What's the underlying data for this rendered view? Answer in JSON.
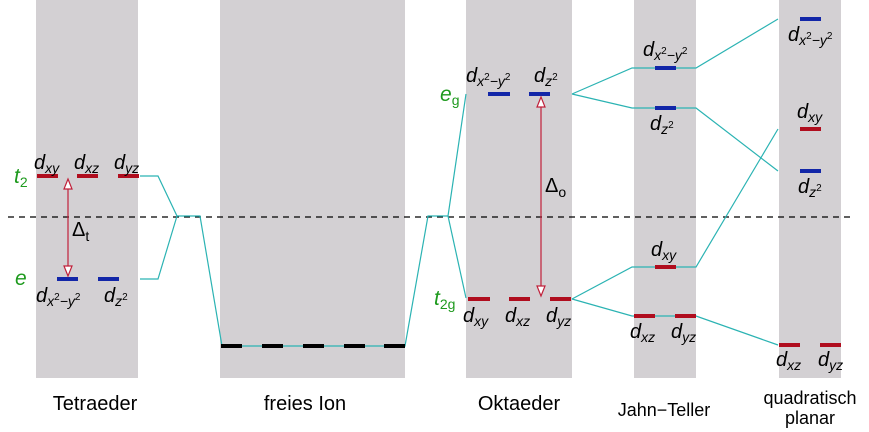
{
  "captions": {
    "tetrahedral": "Tetraeder",
    "free_ion": "freies Ion",
    "octahedral": "Oktaeder",
    "jahn_teller": "Jahn−Teller",
    "square_planar_1": "quadratisch",
    "square_planar_2": "planar"
  },
  "symmetry": {
    "t2": "t",
    "t2_sub": "2",
    "e": "e",
    "eg": "e",
    "eg_sub": "g",
    "t2g": "t",
    "t2g_sub": "2g"
  },
  "splitting": {
    "delta": "Δ",
    "tetra_sub": "t",
    "octa_sub": "o"
  },
  "orbitals": {
    "d": "d",
    "xy": "xy",
    "xz": "xz",
    "yz": "yz",
    "x2y2_x": "x",
    "x2y2_sep": "−",
    "x2y2_y": "y",
    "z2": "z",
    "sq": "2"
  },
  "colors": {
    "panel": "#d3d0d3",
    "connector": "#2bb3b3",
    "t2g_level": "#b00d1e",
    "eg_level": "#1226a8",
    "arrow": "#c0203a",
    "symmetry_label": "#1e9a1e"
  }
}
